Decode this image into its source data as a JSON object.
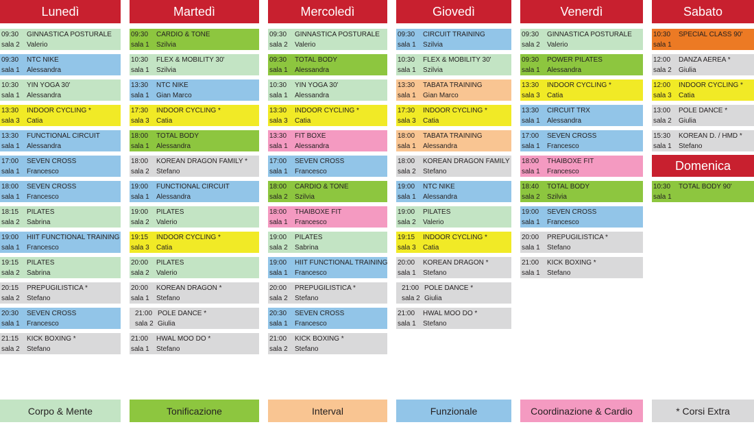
{
  "colors": {
    "header": "#c8202f",
    "corpo": "#c3e4c4",
    "toni": "#8dc63f",
    "interval": "#f9c592",
    "funz": "#92c5e8",
    "coord": "#f49ac1",
    "extra": "#d9d9da",
    "giallo": "#f1ea26",
    "arancio": "#ec7a24"
  },
  "days": [
    {
      "name": "Lunedì",
      "slots": [
        {
          "time": "09:30",
          "course": "GINNASTICA POSTURALE",
          "room": "sala 2",
          "teacher": "Valerio",
          "cat": "corpo"
        },
        {
          "time": "09:30",
          "course": "NTC NIKE",
          "room": "sala 1",
          "teacher": "Alessandra",
          "cat": "funz"
        },
        {
          "time": "10:30",
          "course": "YIN YOGA 30'",
          "room": "sala 1",
          "teacher": "Alessandra",
          "cat": "corpo"
        },
        {
          "time": "13:30",
          "course": "INDOOR CYCLING *",
          "room": "sala 3",
          "teacher": "Catia",
          "cat": "giallo"
        },
        {
          "time": "13:30",
          "course": "FUNCTIONAL CIRCUIT",
          "room": "sala 1",
          "teacher": "Alessandra",
          "cat": "funz"
        },
        {
          "time": "17:00",
          "course": "SEVEN CROSS",
          "room": "sala 1",
          "teacher": "Francesco",
          "cat": "funz"
        },
        {
          "time": "18:00",
          "course": "SEVEN CROSS",
          "room": "sala 1",
          "teacher": "Francesco",
          "cat": "funz"
        },
        {
          "time": "18:15",
          "course": "PILATES",
          "room": "sala 2",
          "teacher": "Sabrina",
          "cat": "corpo"
        },
        {
          "time": "19:00",
          "course": "HIIT FUNCTIONAL TRAINING",
          "room": "sala 1",
          "teacher": "Francesco",
          "cat": "funz"
        },
        {
          "time": "19:15",
          "course": "PILATES",
          "room": "sala 2",
          "teacher": "Sabrina",
          "cat": "corpo"
        },
        {
          "time": "20:15",
          "course": "PREPUGILISTICA *",
          "room": "sala 2",
          "teacher": "Stefano",
          "cat": "extra"
        },
        {
          "time": "20:30",
          "course": "SEVEN CROSS",
          "room": "sala 1",
          "teacher": "Francesco",
          "cat": "funz"
        },
        {
          "time": "21:15",
          "course": "KICK BOXING *",
          "room": "sala 2",
          "teacher": "Stefano",
          "cat": "extra"
        }
      ]
    },
    {
      "name": "Martedì",
      "slots": [
        {
          "time": "09:30",
          "course": "CARDIO & TONE",
          "room": "sala 1",
          "teacher": "Szilvia",
          "cat": "toni"
        },
        {
          "time": "10:30",
          "course": "FLEX & MOBILITY 30'",
          "room": "sala 1",
          "teacher": "Szilvia",
          "cat": "corpo"
        },
        {
          "time": "13:30",
          "course": "NTC NIKE",
          "room": "sala 1",
          "teacher": "Gian Marco",
          "cat": "funz"
        },
        {
          "time": "17:30",
          "course": "INDOOR CYCLING *",
          "room": "sala 3",
          "teacher": "Catia",
          "cat": "giallo"
        },
        {
          "time": "18:00",
          "course": "TOTAL BODY",
          "room": "sala 1",
          "teacher": "Alessandra",
          "cat": "toni"
        },
        {
          "time": "18:00",
          "course": "KOREAN DRAGON FAMILY *",
          "room": "sala 2",
          "teacher": "Stefano",
          "cat": "extra"
        },
        {
          "time": "19:00",
          "course": "FUNCTIONAL CIRCUIT",
          "room": "sala 1",
          "teacher": "Alessandra",
          "cat": "funz"
        },
        {
          "time": "19:00",
          "course": "PILATES",
          "room": "sala 2",
          "teacher": "Valerio",
          "cat": "corpo"
        },
        {
          "time": "19:15",
          "course": "INDOOR CYCLING *",
          "room": "sala 3",
          "teacher": "Catia",
          "cat": "giallo"
        },
        {
          "time": "20:00",
          "course": "PILATES",
          "room": "sala 2",
          "teacher": "Valerio",
          "cat": "corpo"
        },
        {
          "time": "20:00",
          "course": "KOREAN DRAGON *",
          "room": "sala 1",
          "teacher": "Stefano",
          "cat": "extra"
        },
        {
          "time": "21:00",
          "course": "POLE DANCE *",
          "room": "sala 2",
          "teacher": "Giulia",
          "cat": "extra",
          "pad": true
        },
        {
          "time": "21:00",
          "course": "HWAL MOO DO *",
          "room": "sala 1",
          "teacher": "Stefano",
          "cat": "extra"
        }
      ]
    },
    {
      "name": "Mercoledì",
      "slots": [
        {
          "time": "09:30",
          "course": "GINNASTICA POSTURALE",
          "room": "sala 2",
          "teacher": "Valerio",
          "cat": "corpo"
        },
        {
          "time": "09:30",
          "course": "TOTAL BODY",
          "room": "sala 1",
          "teacher": "Alessandra",
          "cat": "toni"
        },
        {
          "time": "10:30",
          "course": "YIN YOGA 30'",
          "room": "sala 1",
          "teacher": "Alessandra",
          "cat": "corpo"
        },
        {
          "time": "13:30",
          "course": "INDOOR CYCLING *",
          "room": "sala 3",
          "teacher": "Catia",
          "cat": "giallo"
        },
        {
          "time": "13:30",
          "course": "FIT BOXE",
          "room": "sala 1",
          "teacher": "Alessandra",
          "cat": "coord"
        },
        {
          "time": "17:00",
          "course": "SEVEN CROSS",
          "room": "sala 1",
          "teacher": "Francesco",
          "cat": "funz"
        },
        {
          "time": "18:00",
          "course": "CARDIO & TONE",
          "room": "sala 2",
          "teacher": "Szilvia",
          "cat": "toni"
        },
        {
          "time": "18:00",
          "course": "THAIBOXE FIT",
          "room": "sala 1",
          "teacher": "Francesco",
          "cat": "coord"
        },
        {
          "time": "19:00",
          "course": "PILATES",
          "room": "sala 2",
          "teacher": "Sabrina",
          "cat": "corpo"
        },
        {
          "time": "19:00",
          "course": "HIIT FUNCTIONAL TRAINING",
          "room": "sala 1",
          "teacher": "Francesco",
          "cat": "funz"
        },
        {
          "time": "20:00",
          "course": "PREPUGILISTICA *",
          "room": "sala 2",
          "teacher": "Stefano",
          "cat": "extra"
        },
        {
          "time": "20:30",
          "course": "SEVEN CROSS",
          "room": "sala 1",
          "teacher": "Francesco",
          "cat": "funz"
        },
        {
          "time": "21:00",
          "course": "KICK BOXING *",
          "room": "sala 2",
          "teacher": "Stefano",
          "cat": "extra"
        }
      ]
    },
    {
      "name": "Giovedì",
      "slots": [
        {
          "time": "09:30",
          "course": "CIRCUIT TRAINING",
          "room": "sala 1",
          "teacher": "Szilvia",
          "cat": "funz"
        },
        {
          "time": "10:30",
          "course": "FLEX & MOBILITY 30'",
          "room": "sala 1",
          "teacher": "Szilvia",
          "cat": "corpo"
        },
        {
          "time": "13:30",
          "course": "TABATA TRAINING",
          "room": "sala 1",
          "teacher": "Gian Marco",
          "cat": "interval"
        },
        {
          "time": "17:30",
          "course": "INDOOR CYCLING *",
          "room": "sala 3",
          "teacher": "Catia",
          "cat": "giallo"
        },
        {
          "time": "18:00",
          "course": "TABATA TRAINING",
          "room": "sala 1",
          "teacher": "Alessandra",
          "cat": "interval"
        },
        {
          "time": "18:00",
          "course": "KOREAN DRAGON FAMILY *",
          "room": "sala 2",
          "teacher": "Stefano",
          "cat": "extra"
        },
        {
          "time": "19:00",
          "course": "NTC NIKE",
          "room": "sala 1",
          "teacher": "Alessandra",
          "cat": "funz"
        },
        {
          "time": "19:00",
          "course": "PILATES",
          "room": "sala 2",
          "teacher": "Valerio",
          "cat": "corpo"
        },
        {
          "time": "19:15",
          "course": "INDOOR CYCLING *",
          "room": "sala 3",
          "teacher": "Catia",
          "cat": "giallo"
        },
        {
          "time": "20:00",
          "course": "KOREAN DRAGON *",
          "room": "sala 1",
          "teacher": "Stefano",
          "cat": "extra"
        },
        {
          "time": "21:00",
          "course": "POLE DANCE *",
          "room": "sala 2",
          "teacher": "Giulia",
          "cat": "extra",
          "pad": true
        },
        {
          "time": "21:00",
          "course": "HWAL MOO DO *",
          "room": "sala 1",
          "teacher": "Stefano",
          "cat": "extra"
        }
      ]
    },
    {
      "name": "Venerdì",
      "slots": [
        {
          "time": "09:30",
          "course": "GINNASTICA POSTURALE",
          "room": "sala 2",
          "teacher": "Valerio",
          "cat": "corpo"
        },
        {
          "time": "09:30",
          "course": "POWER PILATES",
          "room": "sala 1",
          "teacher": "Alessandra",
          "cat": "toni"
        },
        {
          "time": "13:30",
          "course": "INDOOR CYCLING *",
          "room": "sala 3",
          "teacher": "Catia",
          "cat": "giallo"
        },
        {
          "time": "13:30",
          "course": "CIRCUIT TRX",
          "room": "sala 1",
          "teacher": "Alessandra",
          "cat": "funz"
        },
        {
          "time": "17:00",
          "course": "SEVEN CROSS",
          "room": "sala 1",
          "teacher": "Francesco",
          "cat": "funz"
        },
        {
          "time": "18:00",
          "course": "THAIBOXE FIT",
          "room": "sala 1",
          "teacher": "Francesco",
          "cat": "coord"
        },
        {
          "time": "18:40",
          "course": "TOTAL BODY",
          "room": "sala 2",
          "teacher": "Szilvia",
          "cat": "toni"
        },
        {
          "time": "19:00",
          "course": "SEVEN CROSS",
          "room": "sala 1",
          "teacher": "Francesco",
          "cat": "funz"
        },
        {
          "time": "20:00",
          "course": "PREPUGILISTICA *",
          "room": "sala 1",
          "teacher": "Stefano",
          "cat": "extra"
        },
        {
          "time": "21:00",
          "course": "KICK BOXING *",
          "room": "sala 1",
          "teacher": "Stefano",
          "cat": "extra"
        }
      ]
    },
    {
      "name": "Sabato",
      "slots": [
        {
          "time": "10:30",
          "course": "SPECIAL CLASS 90'",
          "room": "sala 1",
          "teacher": "",
          "cat": "arancio"
        },
        {
          "time": "12:00",
          "course": "DANZA AEREA *",
          "room": "sala 2",
          "teacher": "Giulia",
          "cat": "extra"
        },
        {
          "time": "12:00",
          "course": "INDOOR CYCLING *",
          "room": "sala 3",
          "teacher": "Catia",
          "cat": "giallo"
        },
        {
          "time": "13:00",
          "course": "POLE DANCE *",
          "room": "sala 2",
          "teacher": "Giulia",
          "cat": "extra"
        },
        {
          "time": "15:30",
          "course": "KOREAN D. / HMD *",
          "room": "sala 1",
          "teacher": "Stefano",
          "cat": "extra"
        }
      ]
    }
  ],
  "sunday": {
    "name": "Domenica",
    "slots": [
      {
        "time": "10:30",
        "course": "TOTAL BODY 90'",
        "room": "sala 1",
        "teacher": "",
        "cat": "toni"
      }
    ]
  },
  "legend": [
    {
      "label": "Corpo & Mente",
      "cat": "corpo"
    },
    {
      "label": "Tonificazione",
      "cat": "toni"
    },
    {
      "label": "Interval",
      "cat": "interval"
    },
    {
      "label": "Funzionale",
      "cat": "funz"
    },
    {
      "label": "Coordinazione & Cardio",
      "cat": "coord"
    },
    {
      "label": "* Corsi Extra",
      "cat": "extra"
    }
  ]
}
